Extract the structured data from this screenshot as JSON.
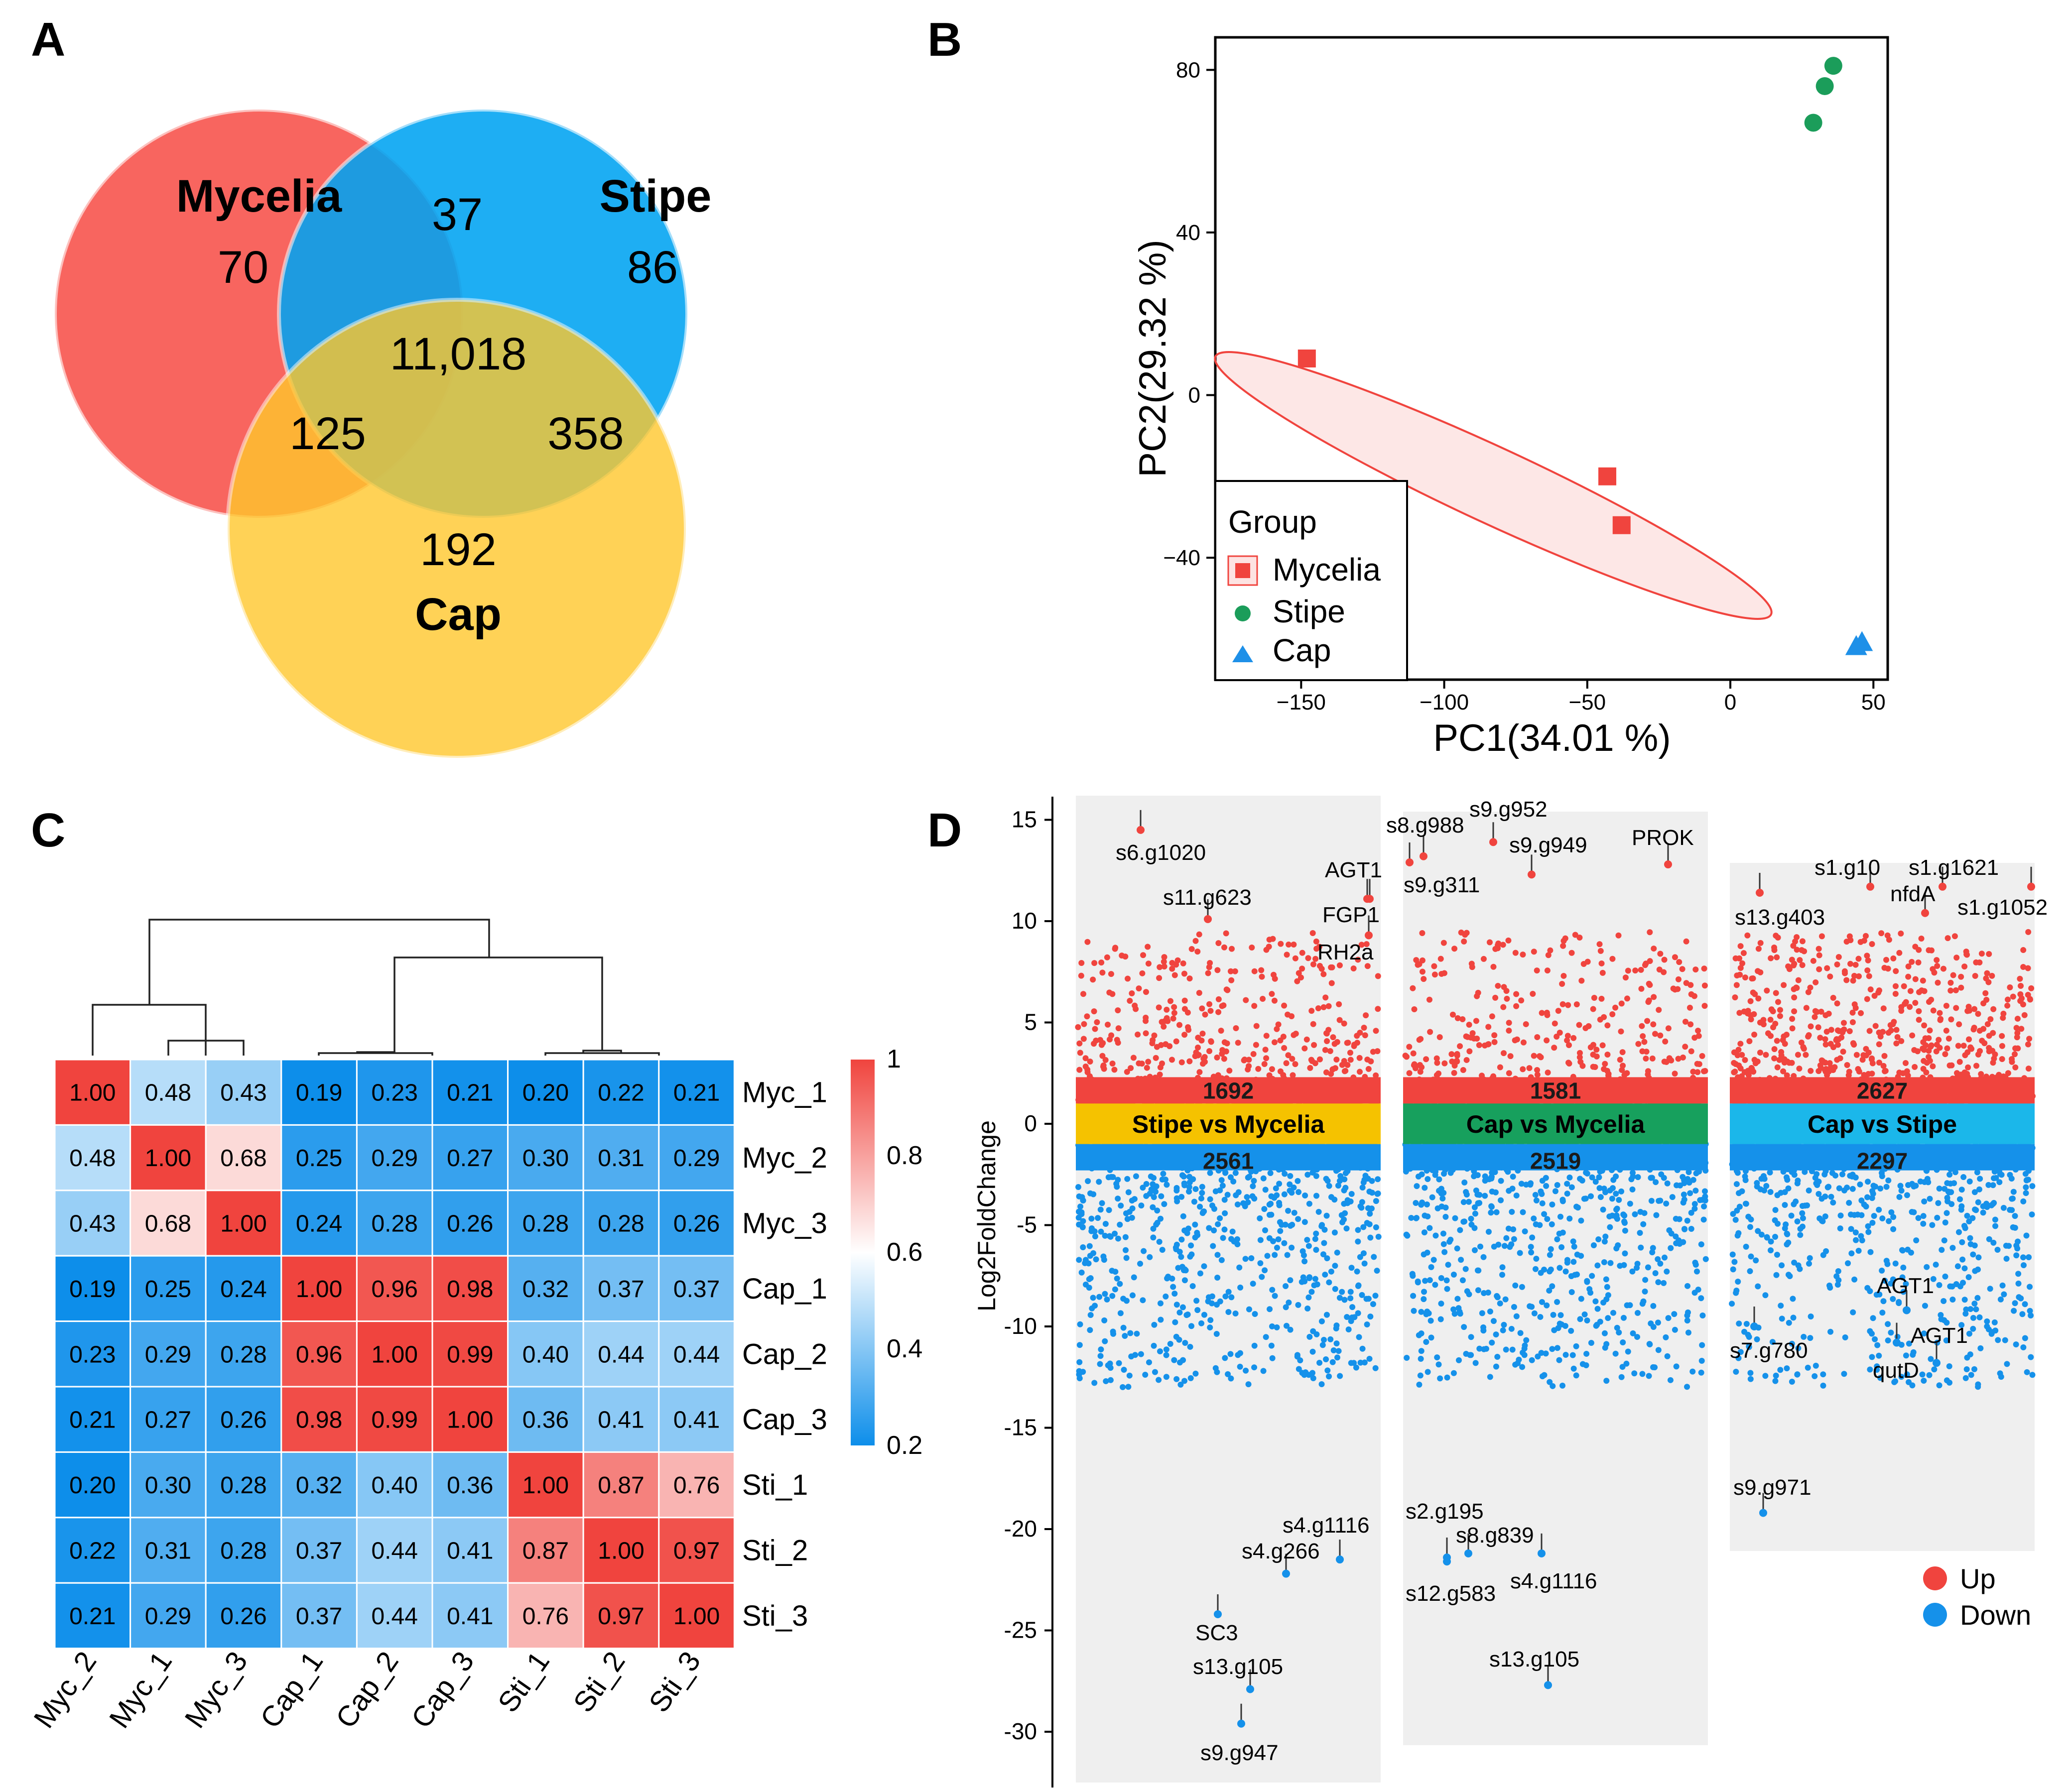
{
  "panels": {
    "A": {
      "letter": "A",
      "sets": [
        {
          "name": "Mycelia",
          "only": "70",
          "color": "#F8504A"
        },
        {
          "name": "Stipe",
          "only": "86",
          "color": "#00A3F2"
        },
        {
          "name": "Cap",
          "only": "192",
          "color": "#FFC72C"
        }
      ],
      "overlaps": {
        "mycelia_stipe": "37",
        "all": "11,018",
        "mycelia_cap": "125",
        "stipe_cap": "358"
      }
    },
    "B": {
      "letter": "B",
      "xlabel": "PC1(34.01 %)",
      "ylabel": "PC2(29.32 %)",
      "xlim": [
        -180,
        55
      ],
      "ylim": [
        -70,
        88
      ],
      "xticks": [
        -150,
        -100,
        -50,
        0,
        50
      ],
      "xtick_labels": [
        "−150",
        "−100",
        "−50",
        "0",
        "50"
      ],
      "yticks": [
        -40,
        0,
        40,
        80
      ],
      "ytick_labels": [
        "−40",
        "0",
        "40",
        "80"
      ],
      "legend": {
        "title": "Group"
      },
      "groups": [
        {
          "name": "Mycelia",
          "shape": "square",
          "color": "#F0443E",
          "points": [
            [
              -148,
              9
            ],
            [
              -43,
              -20
            ],
            [
              -38,
              -32
            ]
          ]
        },
        {
          "name": "Stipe",
          "shape": "circle",
          "color": "#1B9D5A",
          "points": [
            [
              36,
              81
            ],
            [
              33,
              76
            ],
            [
              29,
              67
            ]
          ]
        },
        {
          "name": "Cap",
          "shape": "triangle",
          "color": "#1E90E8",
          "points": [
            [
              44,
              -62
            ],
            [
              46,
              -61
            ]
          ]
        }
      ]
    },
    "C": {
      "letter": "C",
      "rows": [
        "Myc_1",
        "Myc_2",
        "Myc_3",
        "Cap_1",
        "Cap_2",
        "Cap_3",
        "Sti_1",
        "Sti_2",
        "Sti_3"
      ],
      "cols": [
        "Myc_2",
        "Myc_1",
        "Myc_3",
        "Cap_1",
        "Cap_2",
        "Cap_3",
        "Sti_1",
        "Sti_2",
        "Sti_3"
      ],
      "legend_ticks": [
        "1",
        "0.8",
        "0.6",
        "0.4",
        "0.2"
      ]
    },
    "D": {
      "letter": "D",
      "ylabel": "Log2FoldChange",
      "yticks": [
        "15",
        "10",
        "5",
        "0",
        "-5",
        "-10",
        "-15",
        "-20",
        "-25",
        "-30"
      ],
      "legend": {
        "up": "Up",
        "down": "Down",
        "up_color": "#F0443E",
        "down_color": "#1591EA"
      },
      "comparisons": [
        {
          "name": "Stipe vs Mycelia",
          "up": "1692",
          "down": "2561",
          "band_color": "#F5C200",
          "labels": [
            "s6.g1020",
            "s11.g623",
            "AGT1",
            "FGP1",
            "RH2a",
            "s4.g1116",
            "s4.g266",
            "SC3",
            "s13.g105",
            "s9.g947"
          ]
        },
        {
          "name": "Cap vs Mycelia",
          "up": "1581",
          "down": "2519",
          "band_color": "#17A05D",
          "labels": [
            "s9.g952",
            "s8.g988",
            "s9.g949",
            "PROK",
            "s9.g311",
            "s2.g195",
            "s8.g839",
            "s4.g1116",
            "s12.g583",
            "s13.g105"
          ]
        },
        {
          "name": "Cap vs Stipe",
          "up": "2627",
          "down": "2297",
          "band_color": "#1BB7EA",
          "labels": [
            "s1.g10",
            "s1.g1621",
            "nfdA",
            "s13.g403",
            "s1.g1052",
            "AGT1",
            "AGT1",
            "s7.g780",
            "qutD",
            "s9.g971"
          ]
        }
      ]
    }
  },
  "chart_data": [
    {
      "type": "venn",
      "title": "A",
      "sets": [
        "Mycelia",
        "Stipe",
        "Cap"
      ],
      "regions": {
        "Mycelia": 70,
        "Stipe": 86,
        "Cap": 192,
        "Mycelia&Stipe": 37,
        "Mycelia&Cap": 125,
        "Stipe&Cap": 358,
        "Mycelia&Stipe&Cap": 11018
      }
    },
    {
      "type": "scatter",
      "title": "B",
      "xlabel": "PC1(34.01 %)",
      "ylabel": "PC2(29.32 %)",
      "xlim": [
        -180,
        55
      ],
      "ylim": [
        -70,
        88
      ],
      "series": [
        {
          "name": "Mycelia",
          "x": [
            -148,
            -43,
            -38
          ],
          "y": [
            9,
            -20,
            -32
          ]
        },
        {
          "name": "Stipe",
          "x": [
            36,
            33,
            29
          ],
          "y": [
            81,
            76,
            67
          ]
        },
        {
          "name": "Cap",
          "x": [
            44,
            46
          ],
          "y": [
            -62,
            -61
          ]
        }
      ]
    },
    {
      "type": "heatmap",
      "title": "C",
      "rows": [
        "Myc_1",
        "Myc_2",
        "Myc_3",
        "Cap_1",
        "Cap_2",
        "Cap_3",
        "Sti_1",
        "Sti_2",
        "Sti_3"
      ],
      "cols": [
        "Myc_2",
        "Myc_1",
        "Myc_3",
        "Cap_1",
        "Cap_2",
        "Cap_3",
        "Sti_1",
        "Sti_2",
        "Sti_3"
      ],
      "values": [
        [
          "1.00",
          "0.48",
          "0.43",
          "0.19",
          "0.23",
          "0.21",
          "0.20",
          "0.22",
          "0.21"
        ],
        [
          "0.48",
          "1.00",
          "0.68",
          "0.25",
          "0.29",
          "0.27",
          "0.30",
          "0.31",
          "0.29"
        ],
        [
          "0.43",
          "0.68",
          "1.00",
          "0.24",
          "0.28",
          "0.26",
          "0.28",
          "0.28",
          "0.26"
        ],
        [
          "0.19",
          "0.25",
          "0.24",
          "1.00",
          "0.96",
          "0.98",
          "0.32",
          "0.37",
          "0.37"
        ],
        [
          "0.23",
          "0.29",
          "0.28",
          "0.96",
          "1.00",
          "0.99",
          "0.40",
          "0.44",
          "0.44"
        ],
        [
          "0.21",
          "0.27",
          "0.26",
          "0.98",
          "0.99",
          "1.00",
          "0.36",
          "0.41",
          "0.41"
        ],
        [
          "0.20",
          "0.30",
          "0.28",
          "0.32",
          "0.40",
          "0.36",
          "1.00",
          "0.87",
          "0.76"
        ],
        [
          "0.22",
          "0.31",
          "0.28",
          "0.37",
          "0.44",
          "0.41",
          "0.87",
          "1.00",
          "0.97"
        ],
        [
          "0.21",
          "0.29",
          "0.26",
          "0.37",
          "0.44",
          "0.41",
          "0.76",
          "0.97",
          "1.00"
        ]
      ],
      "color_range": [
        0.2,
        1
      ]
    },
    {
      "type": "scatter",
      "title": "D",
      "ylabel": "Log2FoldChange",
      "ylim": [
        -32,
        16
      ],
      "series": [
        {
          "name": "Stipe vs Mycelia",
          "up_count": 1692,
          "down_count": 2561,
          "labeled": [
            {
              "label": "s6.g1020",
              "y": 14.5
            },
            {
              "label": "s11.g623",
              "y": 10.1
            },
            {
              "label": "AGT1",
              "y": 11.1
            },
            {
              "label": "FGP1",
              "y": 11.1
            },
            {
              "label": "RH2a",
              "y": 9.3
            },
            {
              "label": "s4.g1116",
              "y": -21.5
            },
            {
              "label": "s4.g266",
              "y": -22.2
            },
            {
              "label": "SC3",
              "y": -24.2
            },
            {
              "label": "s13.g105",
              "y": -27.9
            },
            {
              "label": "s9.g947",
              "y": -29.6
            }
          ]
        },
        {
          "name": "Cap vs Mycelia",
          "up_count": 1581,
          "down_count": 2519,
          "labeled": [
            {
              "label": "s9.g952",
              "y": 13.9
            },
            {
              "label": "s8.g988",
              "y": 13.2
            },
            {
              "label": "s9.g949",
              "y": 12.3
            },
            {
              "label": "PROK",
              "y": 12.8
            },
            {
              "label": "s9.g311",
              "y": 12.9
            },
            {
              "label": "s2.g195",
              "y": -21.6
            },
            {
              "label": "s8.g839",
              "y": -21.2
            },
            {
              "label": "s4.g1116",
              "y": -21.2
            },
            {
              "label": "s12.g583",
              "y": -21.4
            },
            {
              "label": "s13.g105",
              "y": -27.7
            }
          ]
        },
        {
          "name": "Cap vs Stipe",
          "up_count": 2627,
          "down_count": 2297,
          "labeled": [
            {
              "label": "s1.g10",
              "y": 11.7
            },
            {
              "label": "s1.g1621",
              "y": 11.7
            },
            {
              "label": "nfdA",
              "y": 10.4
            },
            {
              "label": "s13.g403",
              "y": 11.4
            },
            {
              "label": "s1.g1052",
              "y": 11.7
            },
            {
              "label": "AGT1",
              "y": -9.2
            },
            {
              "label": "AGT1",
              "y": -11.8
            },
            {
              "label": "s7.g780",
              "y": -10.0
            },
            {
              "label": "qutD",
              "y": -10.8
            },
            {
              "label": "s9.g971",
              "y": -19.2
            }
          ]
        }
      ]
    }
  ]
}
